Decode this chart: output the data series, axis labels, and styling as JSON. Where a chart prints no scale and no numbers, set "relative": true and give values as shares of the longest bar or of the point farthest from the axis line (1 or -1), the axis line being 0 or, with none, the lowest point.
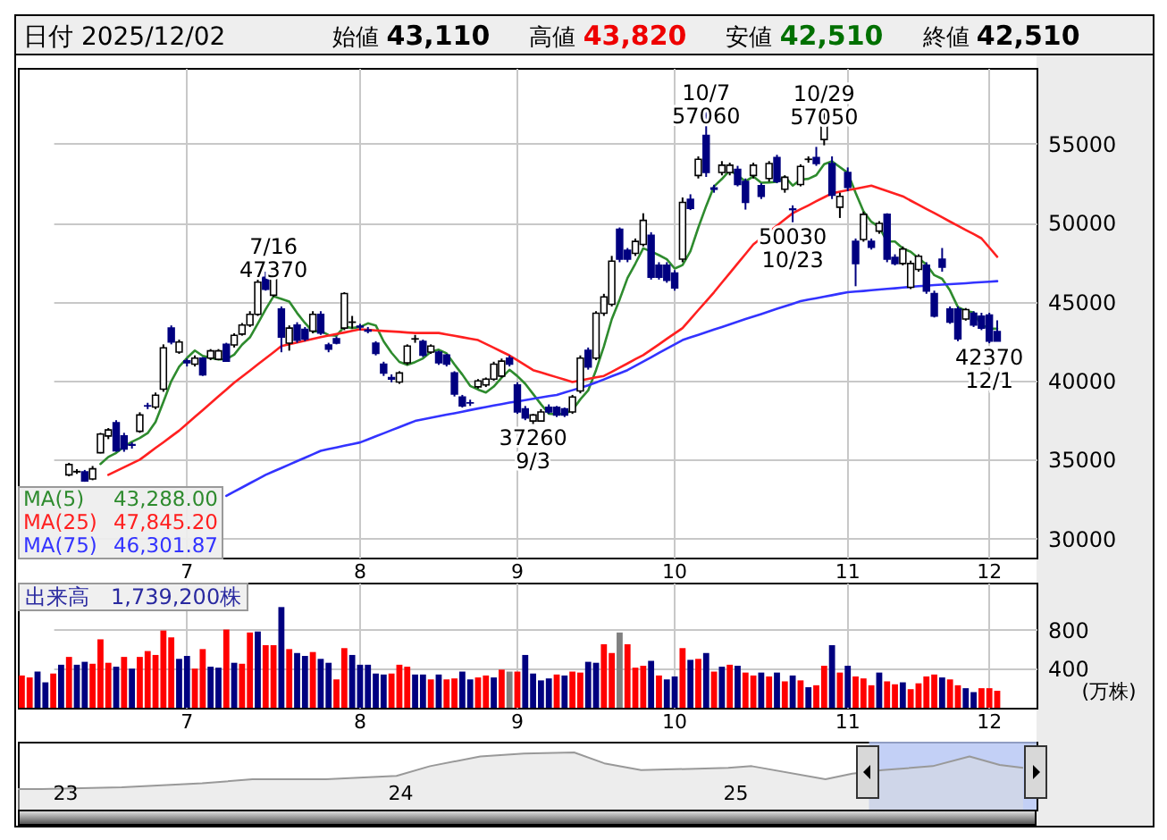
{
  "chart_data": [
    {
      "type": "candlestick",
      "title": "日付 2025/12/02",
      "annotations": [
        "始値 43,110",
        "高値 43,820",
        "安値 42,510",
        "終値 42,510",
        {
          "text": "7/16\n47370",
          "y": 47370
        },
        {
          "text": "37260\n9/3",
          "y": 37260
        },
        {
          "text": "10/7\n57060",
          "y": 57060
        },
        {
          "text": "10/29\n57050",
          "y": 57050
        },
        {
          "text": "50030\n10/23",
          "y": 50030
        },
        {
          "text": "42370\n12/1",
          "y": 42370
        }
      ],
      "categories": [
        null,
        null,
        null,
        null,
        null,
        null,
        null,
        null,
        null,
        null,
        null,
        null,
        null,
        null,
        null,
        null,
        null,
        null,
        null,
        null,
        null,
        "7",
        null,
        null,
        null,
        null,
        null,
        null,
        null,
        null,
        null,
        null,
        null,
        null,
        null,
        null,
        null,
        null,
        null,
        null,
        null,
        null,
        null,
        "8",
        null,
        null,
        null,
        null,
        null,
        null,
        null,
        null,
        null,
        null,
        null,
        null,
        null,
        null,
        null,
        null,
        null,
        null,
        null,
        "9",
        null,
        null,
        null,
        null,
        null,
        null,
        null,
        null,
        null,
        null,
        null,
        null,
        null,
        null,
        null,
        null,
        null,
        null,
        null,
        "10",
        null,
        null,
        null,
        null,
        null,
        null,
        null,
        null,
        null,
        null,
        null,
        null,
        null,
        null,
        null,
        null,
        null,
        null,
        null,
        null,
        null,
        "11",
        null,
        null,
        null,
        null,
        null,
        null,
        null,
        null,
        null,
        null,
        null,
        null,
        null,
        null,
        null,
        null,
        null,
        "12",
        null
      ],
      "ohlc": [
        null,
        null,
        null,
        null,
        null,
        null,
        [
          34040,
          34800,
          33950,
          34690
        ],
        [
          34230,
          34400,
          34100,
          34250
        ],
        [
          34230,
          34350,
          33600,
          33660
        ],
        [
          33780,
          34600,
          33700,
          34420
        ],
        [
          35440,
          36700,
          35400,
          36620
        ],
        [
          36500,
          37000,
          36300,
          36880
        ],
        [
          37340,
          37500,
          35500,
          35560
        ],
        [
          36500,
          36700,
          35500,
          35670
        ],
        [
          35950,
          36100,
          35700,
          35920
        ],
        [
          36800,
          38000,
          36700,
          37830
        ],
        [
          38410,
          38600,
          38200,
          38400
        ],
        [
          38330,
          39250,
          38200,
          39080
        ],
        [
          39460,
          42300,
          39300,
          42080
        ],
        [
          43330,
          43500,
          42300,
          42450
        ],
        [
          41810,
          42600,
          41700,
          42450
        ],
        [
          41250,
          41400,
          40900,
          41130
        ],
        [
          41050,
          41600,
          40900,
          41430
        ],
        [
          41430,
          41500,
          40300,
          40370
        ],
        [
          41430,
          42000,
          41300,
          41890
        ],
        [
          41350,
          42000,
          41300,
          41890
        ],
        [
          42300,
          42400,
          41200,
          41240
        ],
        [
          42260,
          43000,
          42100,
          42870
        ],
        [
          42950,
          43650,
          42850,
          43520
        ],
        [
          43520,
          44400,
          43400,
          44200
        ],
        [
          44200,
          46400,
          44100,
          46240
        ],
        [
          46550,
          46900,
          45700,
          45790
        ],
        [
          45410,
          47370,
          45300,
          46930
        ],
        [
          44540,
          44700,
          41800,
          42760
        ],
        [
          42380,
          43500,
          41900,
          43330
        ],
        [
          43520,
          43700,
          42400,
          42570
        ],
        [
          43250,
          43400,
          42500,
          42640
        ],
        [
          43140,
          44400,
          43000,
          44200
        ],
        [
          44200,
          44400,
          42900,
          43020
        ],
        [
          42260,
          42400,
          41800,
          42000
        ],
        [
          42650,
          42800,
          42300,
          42380
        ],
        [
          43330,
          45600,
          43200,
          45520
        ],
        [
          43700,
          44100,
          43300,
          43710
        ],
        [
          43450,
          43600,
          43200,
          43400
        ],
        [
          43200,
          43400,
          43000,
          43140
        ],
        [
          42380,
          42500,
          41600,
          41730
        ],
        [
          41050,
          41200,
          40300,
          40490
        ],
        [
          40200,
          40400,
          39900,
          40100
        ],
        [
          39920,
          40600,
          39800,
          40490
        ],
        [
          41130,
          42300,
          41000,
          42190
        ],
        [
          42640,
          42900,
          42400,
          42650
        ],
        [
          42490,
          42600,
          41500,
          41620
        ],
        [
          41810,
          42300,
          41700,
          42190
        ],
        [
          41810,
          41900,
          41000,
          41130
        ],
        [
          41620,
          41700,
          40900,
          41050
        ],
        [
          40490,
          40600,
          39000,
          39160
        ],
        [
          38970,
          39100,
          38300,
          38400
        ],
        [
          38600,
          38800,
          38400,
          38590
        ],
        [
          39610,
          40100,
          39500,
          39990
        ],
        [
          39730,
          40200,
          39600,
          40100
        ],
        [
          40100,
          41200,
          40000,
          41050
        ],
        [
          40290,
          41400,
          40200,
          41240
        ],
        [
          41430,
          41600,
          40900,
          41050
        ],
        [
          39730,
          39900,
          37900,
          38020
        ],
        [
          38210,
          38400,
          37500,
          37640
        ],
        [
          37450,
          37900,
          37260,
          37830
        ],
        [
          37450,
          38200,
          37400,
          38020
        ],
        [
          38320,
          38500,
          37900,
          38020
        ],
        [
          38320,
          38400,
          37700,
          37830
        ],
        [
          38210,
          38300,
          37700,
          37830
        ],
        [
          38020,
          39100,
          37900,
          38970
        ],
        [
          39350,
          41600,
          39200,
          41430
        ],
        [
          41920,
          42100,
          40700,
          40860
        ],
        [
          41430,
          44400,
          41300,
          44270
        ],
        [
          44270,
          45500,
          44100,
          45300
        ],
        [
          44840,
          47900,
          44700,
          47570
        ],
        [
          49580,
          49700,
          47500,
          47690
        ],
        [
          48250,
          48400,
          47500,
          47690
        ],
        [
          48060,
          49000,
          47900,
          48820
        ],
        [
          48630,
          50600,
          48500,
          50150
        ],
        [
          49200,
          49400,
          46400,
          46550
        ],
        [
          47310,
          47500,
          46400,
          46550
        ],
        [
          47310,
          47500,
          46200,
          46360
        ],
        [
          46810,
          47000,
          45700,
          45870
        ],
        [
          47690,
          51600,
          47500,
          51290
        ],
        [
          51480,
          51800,
          50800,
          50910
        ],
        [
          52990,
          54200,
          52800,
          54020
        ],
        [
          55530,
          57060,
          52900,
          53180
        ],
        [
          52200,
          52400,
          51900,
          52120
        ],
        [
          53180,
          53900,
          53000,
          53640
        ],
        [
          53180,
          53800,
          53000,
          53640
        ],
        [
          53370,
          53600,
          52300,
          52420
        ],
        [
          52610,
          52800,
          50830,
          51290
        ],
        [
          52990,
          53800,
          52800,
          53640
        ],
        [
          52350,
          52500,
          51500,
          51670
        ],
        [
          52800,
          53900,
          52600,
          53750
        ],
        [
          54130,
          54300,
          52500,
          52610
        ],
        [
          52120,
          53000,
          51900,
          52880
        ],
        [
          50870,
          51100,
          50030,
          50830
        ],
        [
          52420,
          53700,
          52300,
          53560
        ],
        [
          54010,
          54200,
          53800,
          54020
        ],
        [
          54130,
          54800,
          53600,
          53750
        ],
        [
          55270,
          57050,
          54900,
          56400
        ],
        [
          53750,
          54200,
          51500,
          51740
        ],
        [
          50980,
          51900,
          50300,
          51670
        ],
        [
          53180,
          53500,
          52000,
          52230
        ],
        [
          48820,
          49000,
          45980,
          47420
        ],
        [
          48940,
          50700,
          48800,
          50530
        ],
        [
          48820,
          49000,
          48300,
          48440
        ],
        [
          49470,
          50100,
          49300,
          49960
        ],
        [
          50530,
          50600,
          47500,
          47690
        ],
        [
          47800,
          48000,
          47300,
          47420
        ],
        [
          47420,
          48500,
          47300,
          48330
        ],
        [
          45910,
          47600,
          45800,
          47420
        ],
        [
          47040,
          48000,
          46900,
          47880
        ],
        [
          47310,
          47500,
          45500,
          45680
        ],
        [
          45520,
          45700,
          44000,
          44090
        ],
        [
          47690,
          48400,
          46900,
          47190
        ],
        [
          44540,
          44700,
          43600,
          43710
        ],
        [
          44540,
          44700,
          42500,
          42650
        ],
        [
          43900,
          44600,
          43800,
          44500
        ],
        [
          44270,
          44400,
          43400,
          43520
        ],
        [
          44090,
          44300,
          43200,
          43330
        ],
        [
          44160,
          44300,
          42370,
          42500
        ],
        [
          43110,
          43820,
          42510,
          42510
        ]
      ],
      "series": [
        {
          "name": "MA(5) 43,288.00",
          "color": "#2e8b2e",
          "type": "line",
          "values": [
            null,
            null,
            null,
            null,
            null,
            null,
            null,
            null,
            null,
            null,
            34730,
            35170,
            35430,
            35830,
            36130,
            36370,
            36680,
            37380,
            38660,
            39970,
            40890,
            41440,
            41910,
            41570,
            41450,
            41340,
            41360,
            41650,
            42280,
            42740,
            43610,
            44520,
            45340,
            45180,
            45010,
            44280,
            43650,
            43100,
            43150,
            42890,
            42850,
            43420,
            43330,
            43400,
            43630,
            43500,
            42490,
            41770,
            41190,
            41000,
            41180,
            41410,
            41830,
            41960,
            41730,
            41030,
            40390,
            39670,
            39440,
            39250,
            39630,
            40190,
            40690,
            40290,
            39800,
            39160,
            38510,
            37910,
            37870,
            37910,
            38130,
            38820,
            39380,
            40670,
            42170,
            43890,
            45140,
            46500,
            47410,
            48380,
            48180,
            47950,
            47690,
            47100,
            47320,
            48200,
            49690,
            51050,
            52300,
            52770,
            53320,
            53000,
            52620,
            52930,
            52530,
            52550,
            52590,
            52910,
            52350,
            52730,
            52780,
            53010,
            53710,
            53890,
            53520,
            53160,
            51890,
            50720,
            50060,
            49720,
            48810,
            48810,
            48370,
            48160,
            47750,
            47350,
            46680,
            46450,
            45710,
            44660,
            44430,
            44310,
            43540,
            43300,
            43288
          ]
        },
        {
          "name": "MA(25) 47,845.20",
          "color": "#ff2020",
          "type": "line",
          "values": [
            null,
            null,
            null,
            null,
            null,
            null,
            null,
            null,
            null,
            null,
            null,
            34040,
            34280,
            34520,
            34760,
            35000,
            35370,
            35740,
            36100,
            36470,
            36840,
            37270,
            37710,
            38140,
            38570,
            39010,
            39440,
            39870,
            40260,
            40640,
            41030,
            41420,
            41800,
            42190,
            42300,
            42420,
            42530,
            42650,
            42760,
            42860,
            42960,
            43050,
            43150,
            43250,
            43220,
            43180,
            43150,
            43120,
            43090,
            43050,
            43020,
            43020,
            43020,
            43020,
            42930,
            42840,
            42750,
            42660,
            42570,
            42330,
            42090,
            41840,
            41600,
            41290,
            40980,
            40670,
            40520,
            40370,
            40220,
            40070,
            39920,
            40020,
            40110,
            40210,
            40300,
            40560,
            40830,
            41090,
            41360,
            41620,
            41960,
            42300,
            42650,
            42990,
            43330,
            43900,
            44470,
            45030,
            45600,
            46210,
            46810,
            47420,
            48020,
            48630,
            49020,
            49420,
            49810,
            50210,
            50600,
            50850,
            51100,
            51360,
            51610,
            51860,
            51960,
            52060,
            52150,
            52250,
            52350,
            52180,
            52010,
            51840,
            51670,
            51400,
            51140,
            50870,
            50610,
            50340,
            50070,
            49810,
            49540,
            49280,
            49010,
            48430,
            47845
          ]
        },
        {
          "name": "MA(75) 46,301.87",
          "color": "#3333ff",
          "type": "line",
          "values": [
            null,
            null,
            null,
            null,
            null,
            null,
            null,
            null,
            null,
            null,
            null,
            null,
            null,
            null,
            null,
            null,
            null,
            null,
            null,
            null,
            null,
            null,
            null,
            null,
            null,
            null,
            32710,
            32980,
            33240,
            33510,
            33770,
            34040,
            34260,
            34470,
            34690,
            34910,
            35120,
            35340,
            35560,
            35670,
            35770,
            35880,
            35980,
            36090,
            36280,
            36480,
            36670,
            36870,
            37060,
            37260,
            37450,
            37550,
            37650,
            37750,
            37850,
            37940,
            38040,
            38140,
            38240,
            38330,
            38430,
            38520,
            38610,
            38690,
            38770,
            38860,
            38940,
            39020,
            39100,
            39250,
            39400,
            39550,
            39700,
            39890,
            40080,
            40280,
            40470,
            40670,
            40940,
            41210,
            41480,
            41760,
            42030,
            42300,
            42570,
            42740,
            42900,
            43070,
            43240,
            43400,
            43570,
            43730,
            43900,
            44060,
            44220,
            44390,
            44550,
            44710,
            44870,
            45030,
            45130,
            45220,
            45320,
            45410,
            45510,
            45600,
            45640,
            45680,
            45730,
            45770,
            45810,
            45850,
            45900,
            45940,
            45980,
            46010,
            46050,
            46080,
            46110,
            46140,
            46170,
            46210,
            46240,
            46270,
            46302
          ]
        }
      ],
      "ylim": [
        28800,
        59800
      ],
      "yticks": [
        30000,
        35000,
        40000,
        45000,
        50000,
        55000
      ],
      "grid": true,
      "legend": "bottom left"
    },
    {
      "type": "bar",
      "title": "出来高　1,739,200株",
      "ylabel": "(万株)",
      "categories": [
        null,
        null,
        null,
        null,
        null,
        null,
        null,
        null,
        null,
        null,
        null,
        null,
        null,
        null,
        null,
        null,
        null,
        null,
        null,
        null,
        null,
        "7",
        null,
        null,
        null,
        null,
        null,
        null,
        null,
        null,
        null,
        null,
        null,
        null,
        null,
        null,
        null,
        null,
        null,
        null,
        null,
        null,
        null,
        "8",
        null,
        null,
        null,
        null,
        null,
        null,
        null,
        null,
        null,
        null,
        null,
        null,
        null,
        null,
        null,
        null,
        null,
        null,
        null,
        "9",
        null,
        null,
        null,
        null,
        null,
        null,
        null,
        null,
        null,
        null,
        null,
        null,
        null,
        null,
        null,
        null,
        null,
        null,
        null,
        "10",
        null,
        null,
        null,
        null,
        null,
        null,
        null,
        null,
        null,
        null,
        null,
        null,
        null,
        null,
        null,
        null,
        null,
        null,
        null,
        null,
        null,
        "11",
        null,
        null,
        null,
        null,
        null,
        null,
        null,
        null,
        null,
        null,
        null,
        null,
        null,
        null,
        null,
        null,
        null,
        "12",
        null
      ],
      "values": [
        330,
        310,
        370,
        260,
        350,
        440,
        520,
        440,
        470,
        450,
        700,
        460,
        420,
        520,
        400,
        520,
        580,
        540,
        790,
        720,
        500,
        530,
        400,
        600,
        420,
        410,
        800,
        460,
        450,
        770,
        780,
        640,
        640,
        1030,
        600,
        560,
        530,
        570,
        500,
        460,
        290,
        610,
        540,
        440,
        440,
        350,
        340,
        350,
        440,
        420,
        340,
        340,
        290,
        340,
        290,
        300,
        370,
        290,
        310,
        330,
        310,
        390,
        370,
        370,
        540,
        350,
        280,
        300,
        340,
        330,
        370,
        360,
        470,
        460,
        650,
        560,
        770,
        650,
        410,
        430,
        480,
        330,
        290,
        320,
        610,
        490,
        500,
        560,
        370,
        420,
        440,
        430,
        360,
        330,
        360,
        320,
        360,
        270,
        330,
        280,
        210,
        230,
        430,
        640,
        360,
        430,
        320,
        300,
        230,
        360,
        270,
        240,
        260,
        190,
        250,
        320,
        340,
        310,
        290,
        230,
        200,
        160,
        200,
        200,
        174
      ],
      "colors": [
        "#ff0000",
        "#ff0000",
        "#000080",
        "#000080",
        "#ff0000",
        "#000080",
        "#ff0000",
        "#000080",
        "#000080",
        "#ff0000",
        "#ff0000",
        "#ff0000",
        "#000080",
        "#ff0000",
        "#000080",
        "#ff0000",
        "#ff0000",
        "#ff0000",
        "#ff0000",
        "#ff0000",
        "#000080",
        "#000080",
        "#ff0000",
        "#ff0000",
        "#000080",
        "#000080",
        "#ff0000",
        "#000080",
        "#ff0000",
        "#ff0000",
        "#000080",
        "#ff0000",
        "#ff0000",
        "#000080",
        "#ff0000",
        "#000080",
        "#000080",
        "#ff0000",
        "#000080",
        "#000080",
        "#ff0000",
        "#ff0000",
        "#000080",
        "#000080",
        "#000080",
        "#000080",
        "#000080",
        "#ff0000",
        "#ff0000",
        "#ff0000",
        "#000080",
        "#000080",
        "#ff0000",
        "#000080",
        "#ff0000",
        "#ff0000",
        "#000080",
        "#000080",
        "#ff0000",
        "#ff0000",
        "#000080",
        "#ff0000",
        "#808080",
        "#ff0000",
        "#000080",
        "#000080",
        "#000080",
        "#000080",
        "#ff0000",
        "#000080",
        "#ff0000",
        "#ff0000",
        "#000080",
        "#000080",
        "#ff0000",
        "#ff0000",
        "#808080",
        "#ff0000",
        "#ff0000",
        "#ff0000",
        "#000080",
        "#ff0000",
        "#000080",
        "#000080",
        "#ff0000",
        "#000080",
        "#ff0000",
        "#000080",
        "#ff0000",
        "#000080",
        "#ff0000",
        "#000080",
        "#ff0000",
        "#ff0000",
        "#000080",
        "#ff0000",
        "#000080",
        "#ff0000",
        "#000080",
        "#ff0000",
        "#000080",
        "#ff0000",
        "#ff0000",
        "#000080",
        "#ff0000",
        "#000080",
        "#ff0000",
        "#ff0000",
        "#ff0000",
        "#000080",
        "#ff0000",
        "#ff0000",
        "#000080",
        "#ff0000",
        "#ff0000",
        "#ff0000",
        "#ff0000",
        "#000080",
        "#ff0000",
        "#ff0000",
        "#000080",
        "#000080",
        "#ff0000",
        "#ff0000",
        "#ff0000"
      ],
      "ylim": [
        0,
        1280
      ],
      "yticks": [
        400,
        800
      ],
      "grid": true
    },
    {
      "type": "area",
      "relative": true,
      "color": "#999999",
      "x": [
        2022.86,
        2022.93,
        2023.17,
        2023.41,
        2023.56,
        2023.78,
        2023.99,
        2024.09,
        2024.24,
        2024.37,
        2024.52,
        2024.61,
        2024.72,
        2024.98,
        2025.05,
        2025.27,
        2025.35,
        2025.44,
        2025.59,
        2025.7,
        2025.79,
        2025.86
      ],
      "values": [
        0.36,
        0.36,
        0.39,
        0.46,
        0.53,
        0.53,
        0.59,
        0.76,
        0.93,
        0.98,
        1,
        0.81,
        0.69,
        0.73,
        0.76,
        0.53,
        0.63,
        0.69,
        0.76,
        0.93,
        0.78,
        0.73
      ],
      "xlim": [
        2022.86,
        2025.9
      ],
      "xticks": [
        {
          "value": 2023,
          "label": "23"
        },
        {
          "value": 2024,
          "label": "24"
        },
        {
          "value": 2025,
          "label": "25"
        }
      ],
      "bands": [
        {
          "axis": "x",
          "from": 2025.4,
          "to": 2025.9,
          "color": "#b4c4f4"
        }
      ]
    }
  ]
}
